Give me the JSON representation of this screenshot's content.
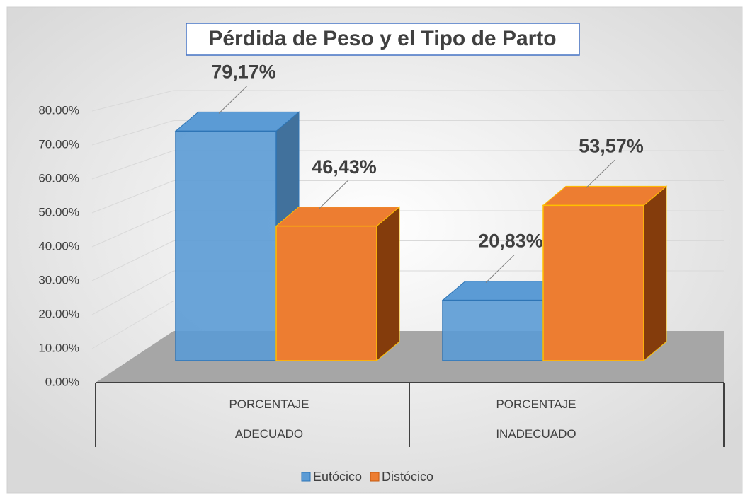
{
  "chart_data": {
    "type": "bar3d",
    "title": "Pérdida de Peso y el Tipo de Parto",
    "categories": [
      "PORCENTAJE ADECUADO",
      "PORCENTAJE INADECUADO"
    ],
    "series": [
      {
        "name": "Eutócico",
        "color": "#5b9bd5",
        "side_color": "#41719c",
        "values": [
          79.17,
          20.83
        ],
        "value_labels": [
          "79,17%",
          "20,83%"
        ]
      },
      {
        "name": "Distócico",
        "color": "#ed7d31",
        "side_color": "#843c0c",
        "values": [
          46.43,
          53.57
        ],
        "value_labels": [
          "46,43%",
          "53,57%"
        ]
      }
    ],
    "ylim": [
      0,
      80
    ],
    "yticks": [
      {
        "value": 0,
        "label": "0.00%"
      },
      {
        "value": 10,
        "label": "10.00%"
      },
      {
        "value": 20,
        "label": "20.00%"
      },
      {
        "value": 30,
        "label": "30.00%"
      },
      {
        "value": 40,
        "label": "40.00%"
      },
      {
        "value": 50,
        "label": "50.00%"
      },
      {
        "value": 60,
        "label": "60.00%"
      },
      {
        "value": 70,
        "label": "70.00%"
      },
      {
        "value": 80,
        "label": "80.00%"
      }
    ],
    "grid": true,
    "legend": "bottom"
  }
}
